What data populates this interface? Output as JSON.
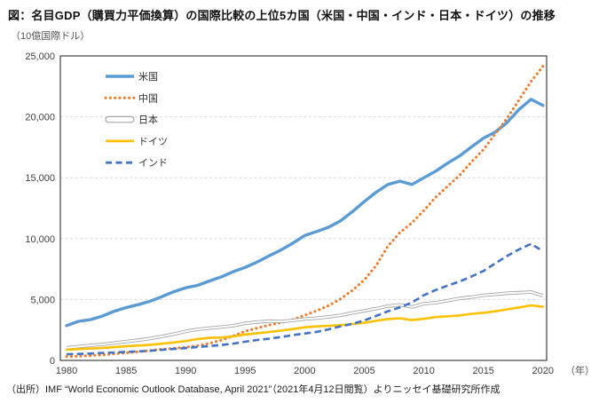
{
  "page": {
    "title": "図：名目GDP（購買力平価換算）の国際比較の上位5カ国（米国・中国・インド・日本・ドイツ）の推移",
    "unit_label": "（10億国際ドル）",
    "year_axis_label": "（年）",
    "source_note": "（出所）IMF “World Economic Outlook Database, April 2021”（2021年4月12日閲覧）よりニッセイ基礎研究所作成"
  },
  "styles": {
    "frame_color": "#3F3F3F",
    "grid_color": "#D9D9D9",
    "tick_text_color": "#404040",
    "legend_text_color": "#333333",
    "axis_note_color": "#555555",
    "background": "#FFFFFF"
  },
  "chart_data": {
    "type": "line",
    "title": "名目GDP（購買力平価換算）の国際比較の上位5カ国の推移",
    "ylabel": "（10億国際ドル）",
    "xlabel": "（年）",
    "ylim": [
      0,
      25000
    ],
    "y_ticks": [
      0,
      5000,
      10000,
      15000,
      20000,
      25000
    ],
    "x_ticks": [
      1980,
      1985,
      1990,
      1995,
      2000,
      2005,
      2010,
      2015,
      2020
    ],
    "grid": "horizontal-dashed",
    "legend_position": "inside-upper-left",
    "years": [
      1980,
      1981,
      1982,
      1983,
      1984,
      1985,
      1986,
      1987,
      1988,
      1989,
      1990,
      1991,
      1992,
      1993,
      1994,
      1995,
      1996,
      1997,
      1998,
      1999,
      2000,
      2001,
      2002,
      2003,
      2004,
      2005,
      2006,
      2007,
      2008,
      2009,
      2010,
      2011,
      2012,
      2013,
      2014,
      2015,
      2016,
      2017,
      2018,
      2019,
      2020
    ],
    "series": [
      {
        "id": "usa",
        "label": "米国",
        "color": "#5B9BD5",
        "line": "solid-thick",
        "values": [
          2857,
          3207,
          3344,
          3634,
          4038,
          4339,
          4580,
          4855,
          5236,
          5642,
          5963,
          6158,
          6520,
          6859,
          7287,
          7640,
          8073,
          8578,
          9063,
          9631,
          10252,
          10582,
          10936,
          11458,
          12214,
          13037,
          13815,
          14452,
          14713,
          14449,
          14992,
          15543,
          16197,
          16785,
          17527,
          18238,
          18745,
          19543,
          20612,
          21433,
          20933
        ]
      },
      {
        "id": "china",
        "label": "中国",
        "color": "#ED7D31",
        "line": "dotted",
        "values": [
          310,
          345,
          395,
          455,
          540,
          630,
          710,
          810,
          920,
          990,
          1080,
          1210,
          1410,
          1660,
          2010,
          2400,
          2650,
          2900,
          3100,
          3350,
          3700,
          4080,
          4500,
          5050,
          5750,
          6600,
          7800,
          9400,
          10500,
          11300,
          12300,
          13400,
          14300,
          15200,
          16300,
          17300,
          18600,
          19900,
          21400,
          22900,
          24150
        ]
      },
      {
        "id": "japan",
        "label": "日本",
        "color": "#A6A6A6",
        "line": "double-outline",
        "values": [
          1040,
          1140,
          1230,
          1310,
          1430,
          1550,
          1660,
          1790,
          1970,
          2160,
          2380,
          2550,
          2650,
          2740,
          2850,
          3050,
          3150,
          3230,
          3200,
          3280,
          3400,
          3470,
          3570,
          3700,
          3900,
          4070,
          4260,
          4460,
          4560,
          4390,
          4660,
          4740,
          4910,
          5090,
          5200,
          5350,
          5420,
          5520,
          5560,
          5610,
          5310
        ]
      },
      {
        "id": "germany",
        "label": "ドイツ",
        "color": "#FFC000",
        "line": "solid",
        "values": [
          880,
          930,
          970,
          1020,
          1090,
          1160,
          1220,
          1280,
          1370,
          1470,
          1590,
          1760,
          1850,
          1880,
          1970,
          2130,
          2230,
          2330,
          2440,
          2570,
          2720,
          2790,
          2840,
          2890,
          2990,
          3090,
          3250,
          3400,
          3460,
          3310,
          3420,
          3560,
          3620,
          3690,
          3830,
          3910,
          4030,
          4190,
          4350,
          4520,
          4400
        ]
      },
      {
        "id": "india",
        "label": "インド",
        "color": "#4472C4",
        "line": "dashed",
        "values": [
          500,
          530,
          560,
          610,
          650,
          700,
          740,
          790,
          870,
          940,
          1010,
          1100,
          1180,
          1270,
          1380,
          1540,
          1680,
          1780,
          1920,
          2080,
          2210,
          2340,
          2550,
          2800,
          3000,
          3280,
          3650,
          4040,
          4350,
          4760,
          5350,
          5780,
          6140,
          6480,
          6890,
          7340,
          7970,
          8580,
          9120,
          9560,
          8970
        ]
      }
    ]
  }
}
